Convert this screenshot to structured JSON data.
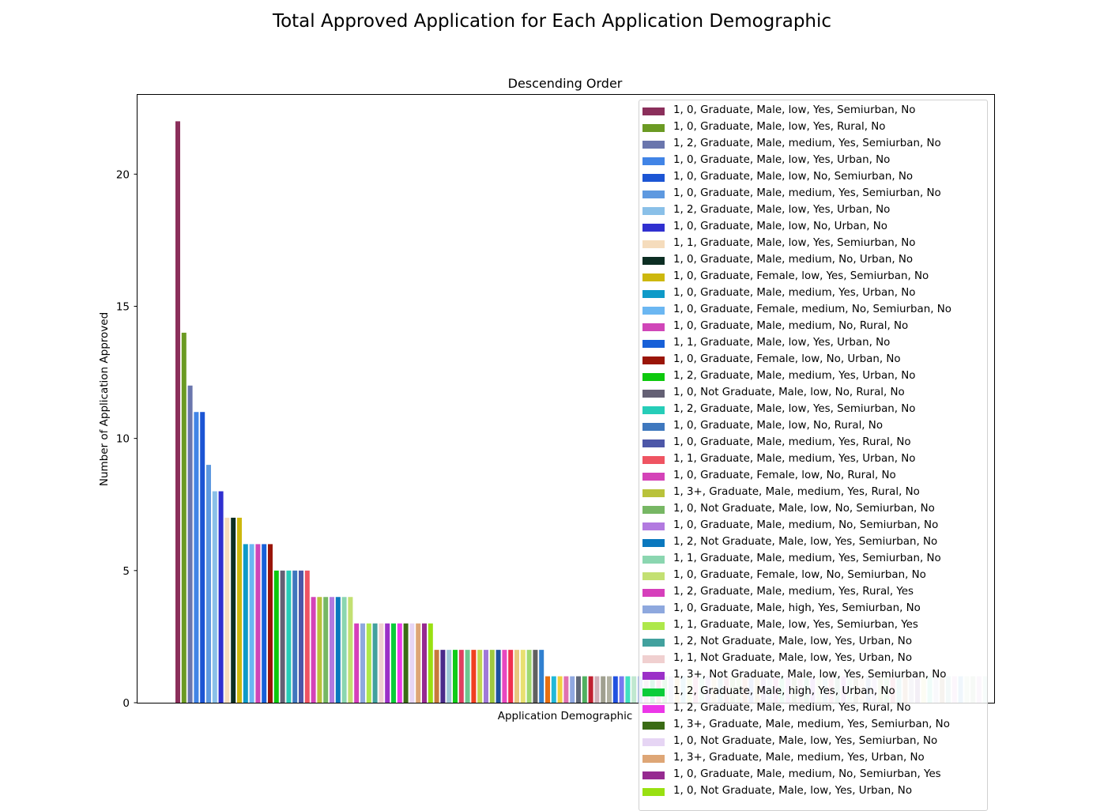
{
  "figure": {
    "suptitle": "Total Approved Application for Each Application Demographic"
  },
  "chart_data": {
    "type": "bar",
    "title": "Descending Order",
    "xlabel": "Application Demographic",
    "ylabel": "Number of Application Approved",
    "ylim": [
      0,
      23
    ],
    "yticks": [
      0,
      5,
      10,
      15,
      20
    ],
    "x_tick_labels_shown": false,
    "grid": false,
    "legend_position": "upper-right",
    "series": [
      {
        "name": "1, 0, Graduate, Male, low, Yes, Semiurban, No",
        "value": 22,
        "color": "#8b2f5b"
      },
      {
        "name": "1, 0, Graduate, Male, low, Yes, Rural, No",
        "value": 14,
        "color": "#6b9a23"
      },
      {
        "name": "1, 2, Graduate, Male, medium, Yes, Semiurban, No",
        "value": 12,
        "color": "#6a76ad"
      },
      {
        "name": "1, 0, Graduate, Male, low, Yes, Urban, No",
        "value": 11,
        "color": "#4184e6"
      },
      {
        "name": "1, 0, Graduate, Male, low, No, Semiurban, No",
        "value": 11,
        "color": "#1c55d4"
      },
      {
        "name": "1, 0, Graduate, Male, medium, Yes, Semiurban, No",
        "value": 9,
        "color": "#5e99e0"
      },
      {
        "name": "1, 2, Graduate, Male, low, Yes, Urban, No",
        "value": 8,
        "color": "#8ac0e8"
      },
      {
        "name": "1, 0, Graduate, Male, low, No, Urban, No",
        "value": 8,
        "color": "#3030d0"
      },
      {
        "name": "1, 1, Graduate, Male, low, Yes, Semiurban, No",
        "value": 7,
        "color": "#f5dcbc"
      },
      {
        "name": "1, 0, Graduate, Male, medium, No, Urban, No",
        "value": 7,
        "color": "#0c2e23"
      },
      {
        "name": "1, 0, Graduate, Female, low, Yes, Semiurban, No",
        "value": 7,
        "color": "#cdb80e"
      },
      {
        "name": "1, 0, Graduate, Male, medium, Yes, Urban, No",
        "value": 6,
        "color": "#0e9ac8"
      },
      {
        "name": "1, 0, Graduate, Female, medium, No, Semiurban, No",
        "value": 6,
        "color": "#6bb7f2"
      },
      {
        "name": "1, 0, Graduate, Male, medium, No, Rural, No",
        "value": 6,
        "color": "#d046b8"
      },
      {
        "name": "1, 1, Graduate, Male, low, Yes, Urban, No",
        "value": 6,
        "color": "#1760d8"
      },
      {
        "name": "1, 0, Graduate, Female, low, No, Urban, No",
        "value": 6,
        "color": "#9a1508"
      },
      {
        "name": "1, 2, Graduate, Male, medium, Yes, Urban, No",
        "value": 5,
        "color": "#0dc90d"
      },
      {
        "name": "1, 0, Not Graduate, Male, low, No, Rural, No",
        "value": 5,
        "color": "#646074"
      },
      {
        "name": "1, 2, Graduate, Male, low, Yes, Semiurban, No",
        "value": 5,
        "color": "#26cdb8"
      },
      {
        "name": "1, 0, Graduate, Male, low, No, Rural, No",
        "value": 5,
        "color": "#3f78be"
      },
      {
        "name": "1, 0, Graduate, Male, medium, Yes, Rural, No",
        "value": 5,
        "color": "#4d57a8"
      },
      {
        "name": "1, 1, Graduate, Male, medium, Yes, Urban, No",
        "value": 5,
        "color": "#ef5462"
      },
      {
        "name": "1, 0, Graduate, Female, low, No, Rural, No",
        "value": 4,
        "color": "#d443b8"
      },
      {
        "name": "1, 3+, Graduate, Male, medium, Yes, Rural, No",
        "value": 4,
        "color": "#b9c23b"
      },
      {
        "name": "1, 0, Not Graduate, Male, low, No, Semiurban, No",
        "value": 4,
        "color": "#77b764"
      },
      {
        "name": "1, 0, Graduate, Male, medium, No, Semiurban, No",
        "value": 4,
        "color": "#b27ae0"
      },
      {
        "name": "1, 2, Not Graduate, Male, low, Yes, Semiurban, No",
        "value": 4,
        "color": "#0a78be"
      },
      {
        "name": "1, 1, Graduate, Male, medium, Yes, Semiurban, No",
        "value": 4,
        "color": "#8bd6b0"
      },
      {
        "name": "1, 0, Graduate, Female, low, No, Semiurban, No",
        "value": 4,
        "color": "#c3e072"
      },
      {
        "name": "1, 2, Graduate, Male, medium, Yes, Rural, Yes",
        "value": 3,
        "color": "#d63fbb"
      },
      {
        "name": "1, 0, Graduate, Male, high, Yes, Semiurban, No",
        "value": 3,
        "color": "#8ea8de"
      },
      {
        "name": "1, 1, Graduate, Male, low, Yes, Semiurban, Yes",
        "value": 3,
        "color": "#aee84a"
      },
      {
        "name": "1, 2, Not Graduate, Male, low, Yes, Urban, No",
        "value": 3,
        "color": "#42a19e"
      },
      {
        "name": "1, 1, Not Graduate, Male, low, Yes, Urban, No",
        "value": 3,
        "color": "#f0d0d0"
      },
      {
        "name": "1, 3+, Not Graduate, Male, low, Yes, Semiurban, No",
        "value": 3,
        "color": "#9b30c8"
      },
      {
        "name": "1, 2, Graduate, Male, high, Yes, Urban, No",
        "value": 3,
        "color": "#0ccc3a"
      },
      {
        "name": "1, 2, Graduate, Male, medium, Yes, Rural, No",
        "value": 3,
        "color": "#ec37e8"
      },
      {
        "name": "1, 3+, Graduate, Male, medium, Yes, Semiurban, No",
        "value": 3,
        "color": "#3a6b14"
      },
      {
        "name": "1, 0, Not Graduate, Male, low, Yes, Semiurban, No",
        "value": 3,
        "color": "#e6d5f4"
      },
      {
        "name": "1, 3+, Graduate, Male, medium, Yes, Urban, No",
        "value": 3,
        "color": "#dea676"
      },
      {
        "name": "1, 0, Graduate, Male, medium, No, Semiurban, Yes",
        "value": 3,
        "color": "#962a90"
      },
      {
        "name": "1, 0, Not Graduate, Male, low, Yes, Urban, No",
        "value": 3,
        "color": "#99e011"
      }
    ],
    "additional_bars": {
      "note_colors_only": true,
      "values": [
        2,
        2,
        2,
        2,
        2,
        2,
        2,
        2,
        2,
        2,
        2,
        2,
        2,
        2,
        2,
        2,
        2,
        2,
        1,
        1,
        1,
        1,
        1,
        1,
        1,
        1,
        1,
        1,
        1,
        1,
        1,
        1,
        1,
        1,
        1,
        1,
        1,
        1,
        1,
        1,
        1,
        1,
        1,
        1,
        1,
        1,
        1,
        1,
        1,
        1,
        1,
        1,
        1,
        1,
        1,
        1,
        1,
        1,
        1,
        1,
        1,
        1,
        1,
        1,
        1,
        1,
        1,
        1,
        1,
        1,
        1,
        1,
        1,
        1,
        1,
        1,
        1,
        1,
        1,
        1,
        1,
        1,
        1,
        1,
        1,
        1,
        1,
        1,
        1,
        1
      ],
      "colors": [
        "#c87a3c",
        "#4a2a8a",
        "#9cc8d8",
        "#0fcc18",
        "#e04060",
        "#6cc890",
        "#f04020",
        "#c0d850",
        "#a078d8",
        "#a0c840",
        "#2050a0",
        "#e848c0",
        "#f03050",
        "#e8c880",
        "#e8e070",
        "#a0d870",
        "#606060",
        "#3080d0",
        "#e87010",
        "#20b8d8",
        "#f0d040",
        "#e070b0",
        "#90a8e0",
        "#606878",
        "#50b060",
        "#c02030",
        "#d0b0b8",
        "#a0a090",
        "#b0b0a0",
        "#2050e0",
        "#7878f0",
        "#40e0c0",
        "#c0e8d0",
        "#a0b8f0",
        "#e0c0e0",
        "#60d0a0",
        "#f0a0c0",
        "#a0e0b0",
        "#d0d0f0",
        "#f0d0a0",
        "#b0e0f0",
        "#e0f0b0",
        "#f0b0d0",
        "#c0f0e0",
        "#d0c0f0",
        "#f0e0c0",
        "#b0d0e0",
        "#e0b0c0",
        "#c0e0b0",
        "#d0f0c0",
        "#f0c0b0",
        "#b0c0f0",
        "#e0d0b0",
        "#c0b0e0",
        "#d0e0f0",
        "#f0b0e0",
        "#b0f0d0",
        "#e0c0f0",
        "#c0d0b0",
        "#f0d0e0",
        "#b0e0c0",
        "#d0b0f0",
        "#e0f0d0",
        "#c0e0f0",
        "#f0c0d0",
        "#b0d0c0",
        "#e0b0f0",
        "#d0f0e0",
        "#c0c0b0",
        "#f0e0d0",
        "#b0c0e0",
        "#e0d0f0",
        "#d0e0b0",
        "#c0f0c0",
        "#f0b0c0",
        "#b0e0e0",
        "#e0c0b0",
        "#d0d0e0",
        "#c0b0d0",
        "#f0f0c0",
        "#b0f0e0",
        "#e0e0f0",
        "#d0c0b0",
        "#c0e0e0",
        "#f0d0f0",
        "#b0d0f0",
        "#e0f0e0",
        "#d0e0d0",
        "#e8d8f0",
        "#d8f0e8"
      ]
    }
  }
}
